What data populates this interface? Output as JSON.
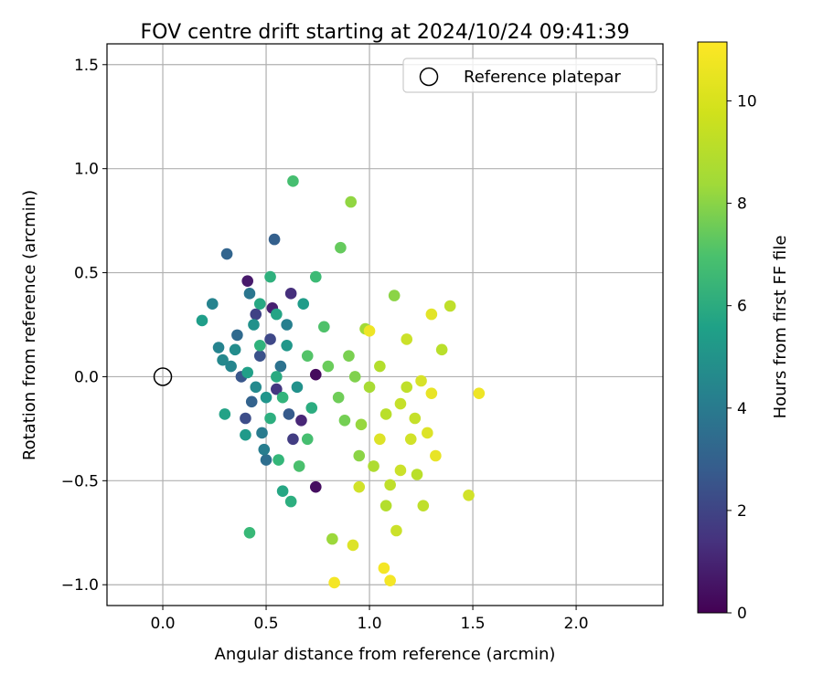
{
  "chart_data": {
    "type": "scatter",
    "title": "FOV centre drift starting at 2024/10/24 09:41:39",
    "xlabel": "Angular distance from reference (arcmin)",
    "ylabel": "Rotation from reference (arcmin)",
    "xlim": [
      -0.27,
      2.42
    ],
    "ylim": [
      -1.1,
      1.6
    ],
    "xticks": [
      0.0,
      0.5,
      1.0,
      1.5,
      2.0
    ],
    "xtick_labels": [
      "0.0",
      "0.5",
      "1.0",
      "1.5",
      "2.0"
    ],
    "yticks": [
      -1.0,
      -0.5,
      0.0,
      0.5,
      1.0,
      1.5
    ],
    "ytick_labels": [
      "−1.0",
      "−0.5",
      "0.0",
      "0.5",
      "1.0",
      "1.5"
    ],
    "grid": true,
    "legend": {
      "position": "top-right",
      "entries": [
        "Reference platepar"
      ]
    },
    "colorbar": {
      "label": "Hours from first FF file",
      "range": [
        0,
        11.15
      ],
      "ticks": [
        0,
        2,
        4,
        6,
        8,
        10
      ],
      "tick_labels": [
        "0",
        "2",
        "4",
        "6",
        "8",
        "10"
      ],
      "colormap": "viridis"
    },
    "reference": {
      "name": "Reference platepar",
      "x": 0.0,
      "y": 0.0
    },
    "series": [
      {
        "name": "FOV centre drift",
        "points": [
          [
            0.74,
            0.01,
            0.3
          ],
          [
            0.74,
            -0.53,
            0.4
          ],
          [
            0.41,
            0.46,
            0.8
          ],
          [
            0.53,
            0.33,
            1.0
          ],
          [
            0.62,
            0.4,
            1.5
          ],
          [
            0.67,
            -0.21,
            1.2
          ],
          [
            0.55,
            -0.06,
            1.8
          ],
          [
            0.63,
            -0.3,
            2.0
          ],
          [
            0.45,
            0.3,
            2.2
          ],
          [
            0.52,
            0.18,
            2.4
          ],
          [
            0.4,
            -0.2,
            2.6
          ],
          [
            0.47,
            0.1,
            2.8
          ],
          [
            0.38,
            0.0,
            3.0
          ],
          [
            0.61,
            -0.18,
            3.2
          ],
          [
            0.54,
            0.66,
            3.4
          ],
          [
            0.31,
            0.59,
            3.6
          ],
          [
            0.36,
            0.2,
            3.8
          ],
          [
            0.43,
            -0.12,
            3.5
          ],
          [
            0.5,
            -0.4,
            4.0
          ],
          [
            0.57,
            0.05,
            4.2
          ],
          [
            0.42,
            0.4,
            4.4
          ],
          [
            0.48,
            -0.27,
            4.6
          ],
          [
            0.6,
            0.25,
            4.8
          ],
          [
            0.24,
            0.35,
            5.0
          ],
          [
            0.29,
            0.08,
            5.2
          ],
          [
            0.35,
            0.13,
            5.4
          ],
          [
            0.44,
            0.25,
            5.6
          ],
          [
            0.5,
            -0.1,
            5.8
          ],
          [
            0.4,
            -0.28,
            6.0
          ],
          [
            0.19,
            0.27,
            6.2
          ],
          [
            0.3,
            -0.18,
            6.4
          ],
          [
            0.58,
            -0.55,
            6.6
          ],
          [
            0.55,
            0.0,
            6.8
          ],
          [
            0.52,
            -0.2,
            7.0
          ],
          [
            0.47,
            0.15,
            7.2
          ],
          [
            0.56,
            -0.4,
            7.4
          ],
          [
            0.63,
            0.94,
            7.8
          ],
          [
            0.42,
            -0.75,
            7.5
          ],
          [
            0.74,
            0.48,
            7.6
          ],
          [
            0.7,
            -0.3,
            7.8
          ],
          [
            0.66,
            -0.43,
            7.9
          ],
          [
            0.78,
            0.24,
            8.0
          ],
          [
            0.86,
            0.62,
            8.5
          ],
          [
            0.8,
            0.05,
            8.6
          ],
          [
            0.85,
            -0.1,
            8.7
          ],
          [
            0.88,
            -0.21,
            8.8
          ],
          [
            0.9,
            0.1,
            8.9
          ],
          [
            0.93,
            0.0,
            9.0
          ],
          [
            0.91,
            0.84,
            9.3
          ],
          [
            0.95,
            -0.38,
            9.2
          ],
          [
            0.96,
            -0.23,
            9.4
          ],
          [
            0.82,
            -0.78,
            9.5
          ],
          [
            0.98,
            0.23,
            9.6
          ],
          [
            1.0,
            -0.05,
            9.7
          ],
          [
            1.02,
            -0.43,
            9.8
          ],
          [
            1.05,
            0.05,
            9.9
          ],
          [
            1.08,
            -0.18,
            10.0
          ],
          [
            1.1,
            -0.52,
            10.1
          ],
          [
            1.12,
            0.39,
            9.2
          ],
          [
            1.15,
            -0.13,
            10.2
          ],
          [
            1.18,
            0.18,
            10.3
          ],
          [
            1.2,
            -0.3,
            10.4
          ],
          [
            1.23,
            -0.47,
            10.0
          ],
          [
            1.25,
            -0.02,
            10.5
          ],
          [
            1.28,
            -0.27,
            10.6
          ],
          [
            1.3,
            0.3,
            10.7
          ],
          [
            1.32,
            -0.38,
            10.8
          ],
          [
            1.35,
            0.13,
            10.0
          ],
          [
            1.39,
            0.34,
            10.1
          ],
          [
            1.48,
            -0.57,
            10.4
          ],
          [
            1.53,
            -0.08,
            10.9
          ],
          [
            1.1,
            -0.98,
            11.0
          ],
          [
            1.07,
            -0.92,
            11.0
          ],
          [
            0.83,
            -0.99,
            11.0
          ],
          [
            1.0,
            0.22,
            10.9
          ],
          [
            1.05,
            -0.3,
            10.6
          ],
          [
            1.15,
            -0.45,
            10.3
          ],
          [
            1.22,
            -0.2,
            10.2
          ],
          [
            1.26,
            -0.62,
            10.1
          ],
          [
            1.08,
            -0.62,
            9.9
          ],
          [
            1.13,
            -0.74,
            10.3
          ],
          [
            0.92,
            -0.81,
            10.6
          ],
          [
            1.18,
            -0.05,
            10.1
          ],
          [
            1.3,
            -0.08,
            10.8
          ],
          [
            0.95,
            -0.53,
            10.4
          ],
          [
            0.6,
            0.15,
            5.9
          ],
          [
            0.55,
            0.3,
            6.5
          ],
          [
            0.47,
            0.35,
            6.7
          ],
          [
            0.52,
            0.48,
            7.1
          ],
          [
            0.65,
            -0.05,
            5.6
          ],
          [
            0.58,
            -0.1,
            7.3
          ],
          [
            0.7,
            0.1,
            8.1
          ],
          [
            0.72,
            -0.15,
            6.9
          ],
          [
            0.45,
            -0.05,
            5.3
          ],
          [
            0.62,
            -0.6,
            7.0
          ],
          [
            0.68,
            0.35,
            6.1
          ],
          [
            0.33,
            0.05,
            5.1
          ],
          [
            0.27,
            0.14,
            5.0
          ],
          [
            0.41,
            0.02,
            6.3
          ],
          [
            0.49,
            -0.35,
            4.7
          ]
        ]
      }
    ]
  }
}
